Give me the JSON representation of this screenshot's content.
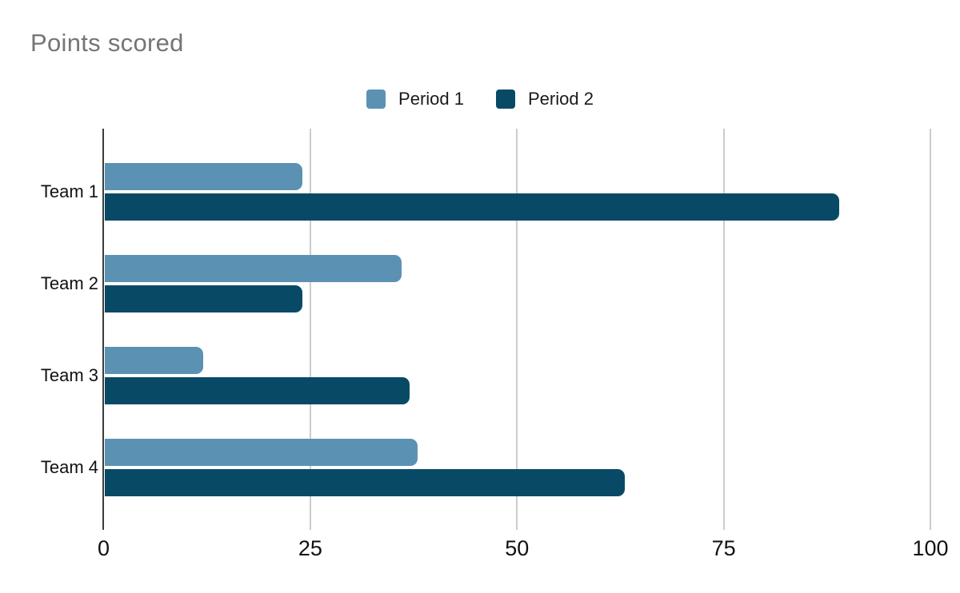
{
  "chart_data": {
    "type": "bar",
    "orientation": "horizontal",
    "title": "Points scored",
    "categories": [
      "Team 1",
      "Team 2",
      "Team 3",
      "Team 4"
    ],
    "series": [
      {
        "name": "Period 1",
        "color": "#5b92b3",
        "values": [
          24,
          36,
          12,
          38
        ]
      },
      {
        "name": "Period 2",
        "color": "#084a66",
        "values": [
          89,
          24,
          37,
          63
        ]
      }
    ],
    "xlim": [
      0,
      100
    ],
    "x_ticks": [
      0,
      25,
      50,
      75,
      100
    ],
    "x_tick_labels": [
      "0",
      "25",
      "50",
      "75",
      "100"
    ],
    "grid": true,
    "legend_position": "top",
    "colors": {
      "title": "#757575",
      "axis_labels": "#111111",
      "gridline": "#cccccc",
      "axis_line": "#3c3c3c",
      "background": "#ffffff"
    }
  }
}
